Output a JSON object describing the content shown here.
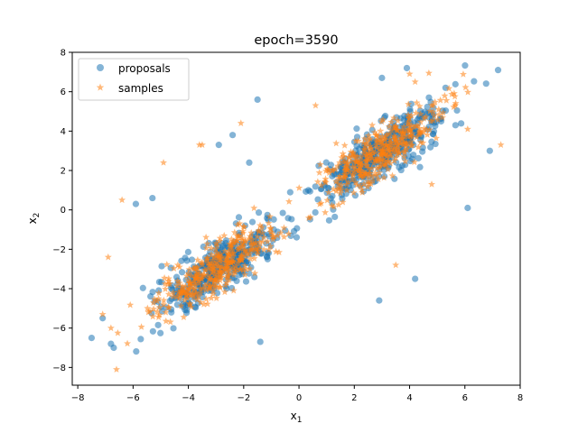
{
  "chart_data": {
    "type": "scatter",
    "title": "epoch=3590",
    "xlabel_base": "x",
    "xlabel_sub": "1",
    "ylabel_base": "x",
    "ylabel_sub": "2",
    "xlim": [
      -8.2,
      8.0
    ],
    "ylim": [
      -8.9,
      8.0
    ],
    "xticks": [
      -8,
      -6,
      -4,
      -2,
      0,
      2,
      4,
      6,
      8
    ],
    "yticks": [
      -8,
      -6,
      -4,
      -2,
      0,
      2,
      4,
      6,
      8
    ],
    "legend_position": "upper-left",
    "grid": false,
    "series": [
      {
        "name": "proposals",
        "marker": "circle",
        "color": "#1f77b4",
        "alpha": 0.55,
        "cluster_centers": [
          [
            -3,
            -3
          ],
          [
            3,
            3
          ]
        ],
        "points": [
          [
            7.2,
            7.1
          ],
          [
            3.9,
            7.2
          ],
          [
            3.0,
            6.7
          ],
          [
            -1.5,
            5.6
          ],
          [
            -7.5,
            -6.5
          ],
          [
            -6.8,
            -6.8
          ],
          [
            -6.7,
            -7.0
          ],
          [
            -7.1,
            -5.5
          ],
          [
            -5.9,
            0.3
          ],
          [
            -1.4,
            -6.7
          ],
          [
            4.2,
            -3.5
          ],
          [
            2.9,
            -4.6
          ],
          [
            -2.9,
            3.3
          ],
          [
            6.9,
            3.0
          ],
          [
            6.1,
            0.1
          ],
          [
            -5.3,
            0.6
          ],
          [
            -1.8,
            2.4
          ],
          [
            -2.4,
            3.8
          ],
          [
            4.7,
            5.7
          ],
          [
            5.3,
            6.2
          ]
        ],
        "random_points": 750
      },
      {
        "name": "samples",
        "marker": "star",
        "color": "#ff7f0e",
        "alpha": 0.55,
        "cluster_centers": [
          [
            -3,
            -3
          ],
          [
            3,
            3
          ]
        ],
        "points": [
          [
            -6.6,
            -8.1
          ],
          [
            -4.9,
            2.4
          ],
          [
            -3.6,
            3.3
          ],
          [
            -3.5,
            3.3
          ],
          [
            -6.4,
            0.5
          ],
          [
            -7.1,
            -5.3
          ],
          [
            -6.8,
            -6.0
          ],
          [
            3.5,
            -2.8
          ],
          [
            4.0,
            6.9
          ],
          [
            4.2,
            6.5
          ],
          [
            7.3,
            3.3
          ],
          [
            6.1,
            4.1
          ],
          [
            0.6,
            5.3
          ],
          [
            -2.1,
            4.4
          ],
          [
            -6.9,
            -2.4
          ],
          [
            4.8,
            1.3
          ]
        ],
        "random_points": 750
      }
    ]
  }
}
